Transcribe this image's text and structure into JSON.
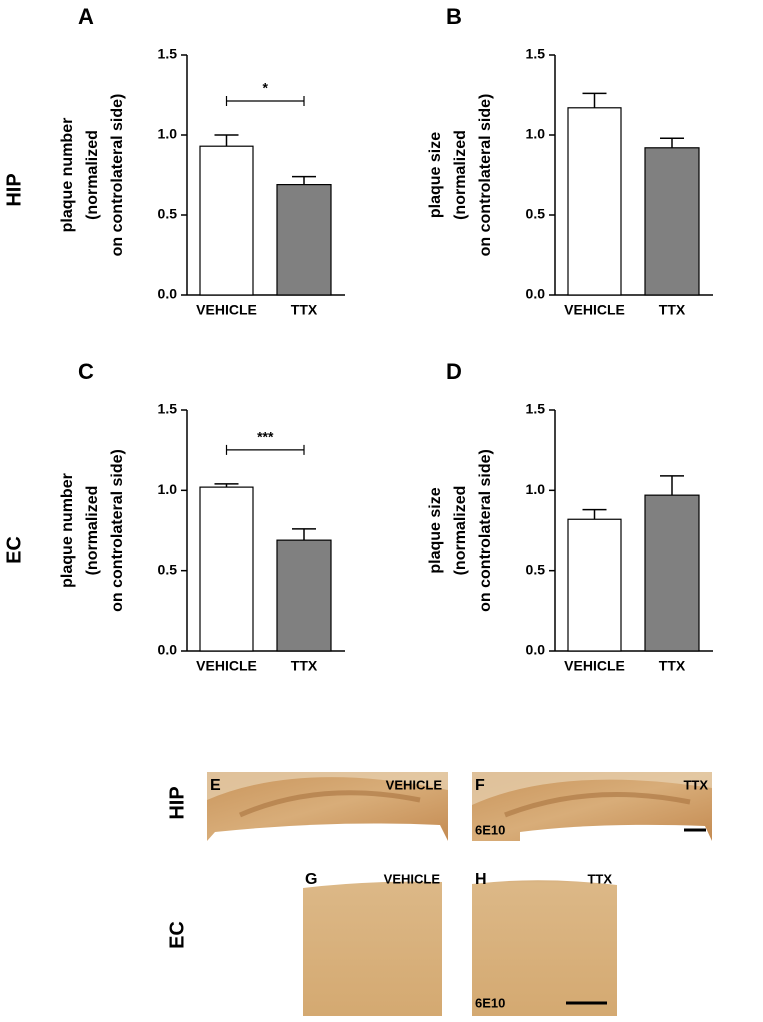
{
  "chart_data": [
    {
      "type": "bar",
      "panel": "A",
      "ylabel": [
        "plaque number",
        "(normalized",
        "on controlateral side)"
      ],
      "categories": [
        "VEHICLE",
        "TTX"
      ],
      "values": [
        0.93,
        0.69
      ],
      "errors": [
        0.07,
        0.05
      ],
      "colors": [
        "#ffffff",
        "#808080"
      ],
      "ylim": [
        0,
        1.5
      ],
      "yticks": [
        {
          "value": 0,
          "label": "0.0"
        },
        {
          "value": 0.5,
          "label": "0.5"
        },
        {
          "value": 1,
          "label": "1.0"
        },
        {
          "value": 1.5,
          "label": "1.5"
        }
      ],
      "significance": "*"
    },
    {
      "type": "bar",
      "panel": "B",
      "ylabel": [
        "plaque size",
        "(normalized",
        "on controlateral side)"
      ],
      "categories": [
        "VEHICLE",
        "TTX"
      ],
      "values": [
        1.17,
        0.92
      ],
      "errors": [
        0.09,
        0.06
      ],
      "colors": [
        "#ffffff",
        "#808080"
      ],
      "ylim": [
        0,
        1.5
      ],
      "yticks": [
        {
          "value": 0,
          "label": "0.0"
        },
        {
          "value": 0.5,
          "label": "0.5"
        },
        {
          "value": 1,
          "label": "1.0"
        },
        {
          "value": 1.5,
          "label": "1.5"
        }
      ]
    },
    {
      "type": "bar",
      "panel": "C",
      "ylabel": [
        "plaque number",
        "(normalized",
        "on controlateral side)"
      ],
      "categories": [
        "VEHICLE",
        "TTX"
      ],
      "values": [
        1.02,
        0.69
      ],
      "errors": [
        0.02,
        0.07
      ],
      "colors": [
        "#ffffff",
        "#808080"
      ],
      "ylim": [
        0,
        1.5
      ],
      "yticks": [
        {
          "value": 0,
          "label": "0.0"
        },
        {
          "value": 0.5,
          "label": "0.5"
        },
        {
          "value": 1,
          "label": "1.0"
        },
        {
          "value": 1.5,
          "label": "1.5"
        }
      ],
      "significance": "***"
    },
    {
      "type": "bar",
      "panel": "D",
      "ylabel": [
        "plaque size",
        "(normalized",
        "on controlateral side)"
      ],
      "categories": [
        "VEHICLE",
        "TTX"
      ],
      "values": [
        0.82,
        0.97
      ],
      "errors": [
        0.06,
        0.12
      ],
      "colors": [
        "#ffffff",
        "#808080"
      ],
      "ylim": [
        0,
        1.5
      ],
      "yticks": [
        {
          "value": 0,
          "label": "0.0"
        },
        {
          "value": 0.5,
          "label": "0.5"
        },
        {
          "value": 1,
          "label": "1.0"
        },
        {
          "value": 1.5,
          "label": "1.5"
        }
      ]
    }
  ],
  "row_labels": [
    "HIP",
    "EC"
  ],
  "image_row_labels": [
    "HIP",
    "EC"
  ],
  "images": [
    {
      "letter": "E",
      "label": "VEHICLE"
    },
    {
      "letter": "F",
      "label": "TTX",
      "stain": "6E10"
    },
    {
      "letter": "G",
      "label": "VEHICLE"
    },
    {
      "letter": "H",
      "label": "TTX",
      "stain": "6E10"
    }
  ]
}
